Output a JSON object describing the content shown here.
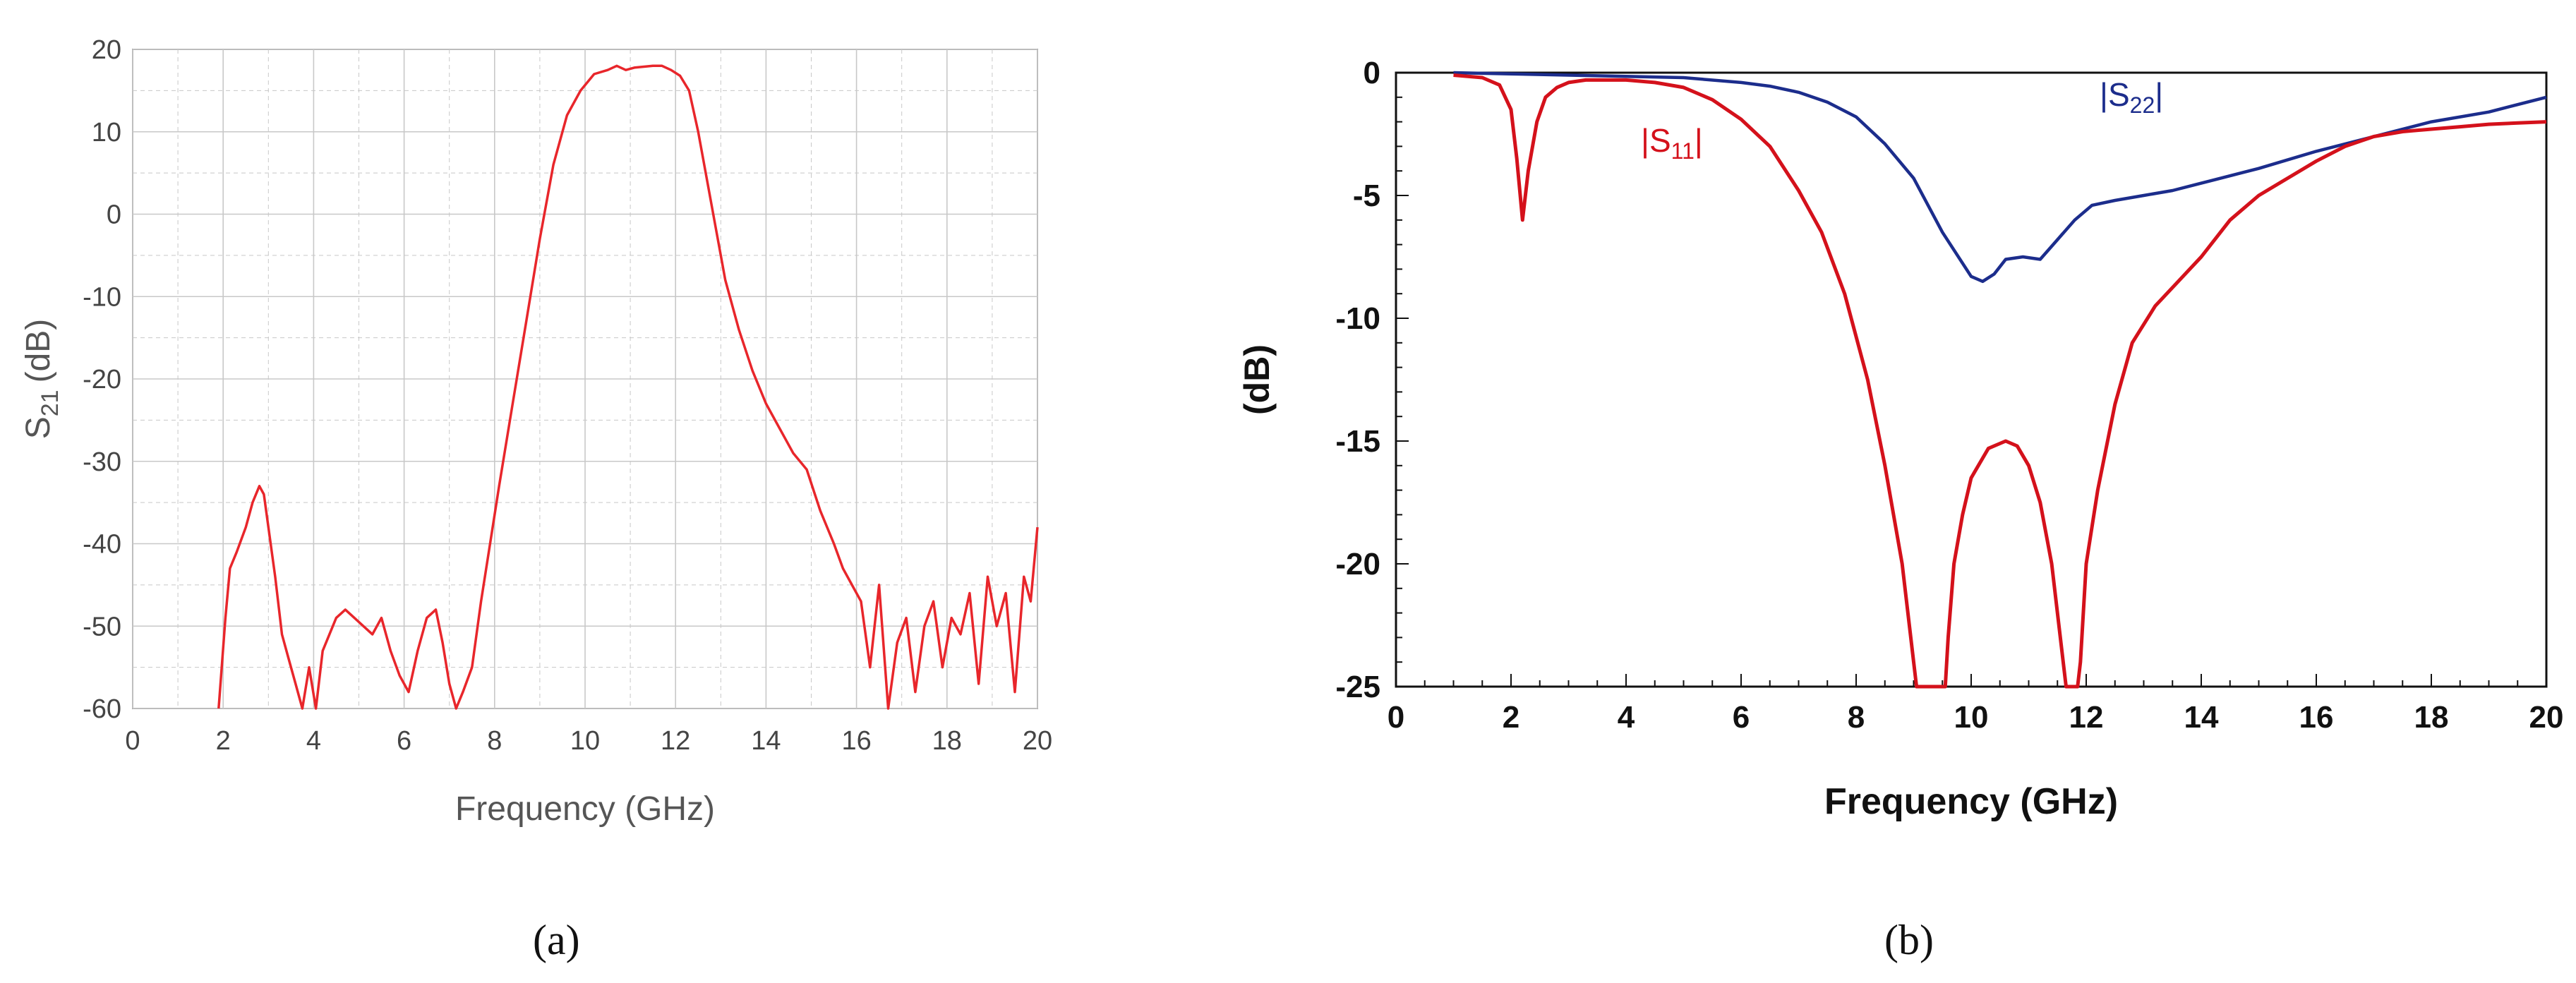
{
  "colors": {
    "s21": "#e8262b",
    "s11": "#d4111b",
    "s22": "#1c2d8c",
    "grid": "#c8c8c8"
  },
  "chart_data": [
    {
      "type": "line",
      "caption": "(a)",
      "xlabel": "Frequency (GHz)",
      "ylabel_main": "S",
      "ylabel_sub": "21",
      "ylabel_unit": "(dB)",
      "xlim": [
        0,
        20
      ],
      "ylim": [
        -60,
        20
      ],
      "xticks": [
        0,
        2,
        4,
        6,
        8,
        10,
        12,
        14,
        16,
        18,
        20
      ],
      "yticks": [
        20,
        10,
        0,
        -10,
        -20,
        -30,
        -40,
        -50,
        -60
      ],
      "grid": true,
      "series": [
        {
          "x": [
            1.9,
            2.05,
            2.15,
            2.3,
            2.5,
            2.65,
            2.8,
            2.9,
            3.0,
            3.15,
            3.3,
            3.45,
            3.6,
            3.75,
            3.9,
            4.05,
            4.2,
            4.35,
            4.5,
            4.7,
            4.9,
            5.1,
            5.3,
            5.5,
            5.7,
            5.9,
            6.1,
            6.3,
            6.5,
            6.7,
            6.85,
            7.0,
            7.15,
            7.3,
            7.5,
            7.7,
            7.9,
            8.1,
            8.4,
            8.7,
            9.0,
            9.3,
            9.6,
            9.9,
            10.2,
            10.5,
            10.7,
            10.9,
            11.1,
            11.3,
            11.5,
            11.7,
            11.9,
            12.1,
            12.3,
            12.5,
            12.7,
            12.9,
            13.1,
            13.4,
            13.7,
            14.0,
            14.3,
            14.6,
            14.9,
            15.2,
            15.5,
            15.7,
            15.9,
            16.1,
            16.3,
            16.5,
            16.7,
            16.9,
            17.1,
            17.3,
            17.5,
            17.7,
            17.9,
            18.1,
            18.3,
            18.5,
            18.7,
            18.9,
            19.1,
            19.3,
            19.5,
            19.7,
            19.85,
            20.0
          ],
          "y": [
            -60,
            -49,
            -43,
            -41,
            -38,
            -35,
            -33,
            -34,
            -38,
            -44,
            -51,
            -54,
            -57,
            -60,
            -55,
            -60,
            -53,
            -51,
            -49,
            -48,
            -49,
            -50,
            -51,
            -49,
            -53,
            -56,
            -58,
            -53,
            -49,
            -48,
            -52,
            -57,
            -60,
            -58,
            -55,
            -47,
            -40,
            -33,
            -23,
            -13,
            -3,
            6,
            12,
            15,
            17,
            17.5,
            18,
            17.5,
            17.8,
            17.9,
            18,
            18,
            17.5,
            16.8,
            15,
            10,
            4,
            -2,
            -8,
            -14,
            -19,
            -23,
            -26,
            -29,
            -31,
            -36,
            -40,
            -43,
            -45,
            -47,
            -55,
            -45,
            -60,
            -52,
            -49,
            -58,
            -50,
            -47,
            -55,
            -49,
            -51,
            -46,
            -57,
            -44,
            -50,
            -46,
            -58,
            -44,
            -47,
            -38
          ]
        }
      ]
    },
    {
      "type": "line",
      "caption": "(b)",
      "xlabel": "Frequency (GHz)",
      "ylabel": "(dB)",
      "xlim": [
        0,
        20
      ],
      "ylim": [
        -25,
        0
      ],
      "xticks": [
        0,
        2,
        4,
        6,
        8,
        10,
        12,
        14,
        16,
        18,
        20
      ],
      "yticks": [
        0,
        -5,
        -10,
        -15,
        -20,
        -25
      ],
      "grid": false,
      "series": [
        {
          "name_main": "|S",
          "name_sub": "11",
          "name_end": "|",
          "x": [
            1.0,
            1.5,
            1.8,
            2.0,
            2.1,
            2.2,
            2.3,
            2.45,
            2.6,
            2.8,
            3.0,
            3.3,
            3.6,
            4.0,
            4.5,
            5.0,
            5.5,
            6.0,
            6.5,
            7.0,
            7.4,
            7.8,
            8.2,
            8.5,
            8.8,
            9.0,
            9.05,
            9.55,
            9.6,
            9.7,
            9.85,
            10.0,
            10.3,
            10.6,
            10.8,
            11.0,
            11.2,
            11.4,
            11.6,
            11.65,
            11.85,
            11.9,
            12.0,
            12.2,
            12.5,
            12.8,
            13.2,
            13.6,
            14.0,
            14.5,
            15.0,
            15.5,
            16.0,
            16.5,
            17.0,
            17.5,
            18.0,
            18.5,
            19.0,
            19.5,
            20.0
          ],
          "y": [
            -0.1,
            -0.2,
            -0.5,
            -1.5,
            -3.5,
            -6.0,
            -4.0,
            -2.0,
            -1.0,
            -0.6,
            -0.4,
            -0.3,
            -0.3,
            -0.3,
            -0.4,
            -0.6,
            -1.1,
            -1.9,
            -3.0,
            -4.8,
            -6.5,
            -9.0,
            -12.5,
            -16.0,
            -20.0,
            -24.0,
            -25.0,
            -25.0,
            -23.0,
            -20.0,
            -18.0,
            -16.5,
            -15.3,
            -15.0,
            -15.2,
            -16.0,
            -17.5,
            -20.0,
            -24.0,
            -25.0,
            -25.0,
            -24.0,
            -20.0,
            -17.0,
            -13.5,
            -11.0,
            -9.5,
            -8.5,
            -7.5,
            -6.0,
            -5.0,
            -4.3,
            -3.6,
            -3.0,
            -2.6,
            -2.4,
            -2.3,
            -2.2,
            -2.1,
            -2.05,
            -2.0
          ]
        },
        {
          "name_main": "|S",
          "name_sub": "22",
          "name_end": "|",
          "x": [
            1.0,
            2.0,
            3.0,
            4.0,
            5.0,
            6.0,
            6.5,
            7.0,
            7.5,
            8.0,
            8.5,
            9.0,
            9.5,
            10.0,
            10.2,
            10.4,
            10.6,
            10.9,
            11.2,
            11.5,
            11.8,
            12.1,
            12.5,
            13.0,
            13.5,
            14.0,
            15.0,
            16.0,
            17.0,
            18.0,
            19.0,
            19.5,
            20.0
          ],
          "y": [
            0.0,
            -0.05,
            -0.1,
            -0.15,
            -0.2,
            -0.4,
            -0.55,
            -0.8,
            -1.2,
            -1.8,
            -2.9,
            -4.3,
            -6.5,
            -8.3,
            -8.5,
            -8.2,
            -7.6,
            -7.5,
            -7.6,
            -6.8,
            -6.0,
            -5.4,
            -5.2,
            -5.0,
            -4.8,
            -4.5,
            -3.9,
            -3.2,
            -2.6,
            -2.0,
            -1.6,
            -1.3,
            -1.0
          ]
        }
      ]
    }
  ]
}
